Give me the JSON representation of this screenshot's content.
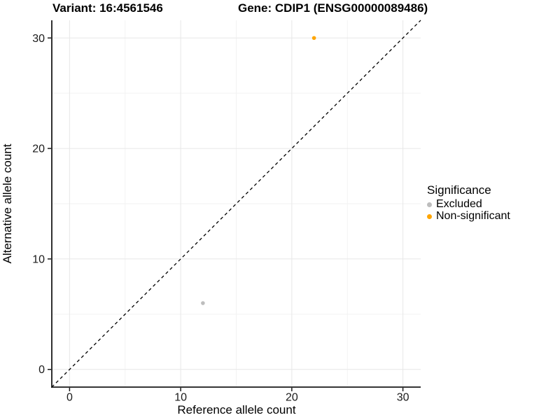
{
  "header": {
    "variant_title": "Variant: 16:4561546",
    "gene_title": "Gene: CDIP1 (ENSG00000089486)"
  },
  "chart_data": {
    "type": "scatter",
    "xlabel": "Reference allele count",
    "ylabel": "Alternative allele count",
    "xlim": [
      -1.6,
      31.6
    ],
    "ylim": [
      -1.6,
      31.6
    ],
    "xticks": [
      0,
      10,
      20,
      30
    ],
    "yticks": [
      0,
      10,
      20,
      30
    ],
    "xminor": [
      5,
      15,
      25
    ],
    "yminor": [
      5,
      15,
      25
    ],
    "grid": "major and minor, very light gray on white",
    "reference_line": {
      "style": "dashed",
      "from": [
        -1.6,
        -1.6
      ],
      "to": [
        31.6,
        31.6
      ],
      "color": "#000000"
    },
    "series": [
      {
        "name": "Excluded",
        "color": "#bdbdbd",
        "points": [
          [
            12,
            6
          ]
        ]
      },
      {
        "name": "Non-significant",
        "color": "#ffa500",
        "points": [
          [
            22,
            30
          ]
        ]
      }
    ],
    "legend": {
      "title": "Significance",
      "position": "right"
    },
    "colors": {
      "major_grid": "#e7e7e7",
      "minor_grid": "#f2f2f2",
      "axis_line": "#1a1a1a",
      "tick_mark": "#1a1a1a",
      "tick_label": "#1a1a1a"
    }
  }
}
